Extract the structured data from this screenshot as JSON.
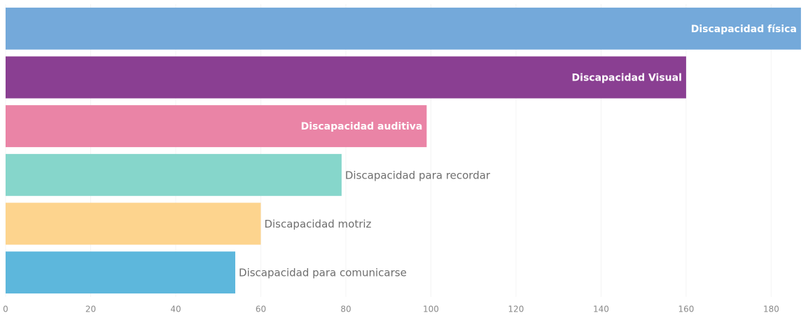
{
  "chart_data": {
    "type": "barh",
    "categories": [
      "Discapacidad física",
      "Discapacidad Visual",
      "Discapacidad auditiva",
      "Discapacidad para recordar",
      "Discapacidad motriz",
      "Discapacidad para comunicarse"
    ],
    "values": [
      187,
      160,
      99,
      79,
      60,
      54
    ],
    "colors": [
      "#74a9da",
      "#8a3f92",
      "#ea84a6",
      "#86d6cb",
      "#fdd48e",
      "#5db7dc"
    ],
    "xlim": [
      0,
      188
    ],
    "xticks": [
      0,
      20,
      40,
      60,
      80,
      100,
      120,
      140,
      160,
      180
    ]
  }
}
